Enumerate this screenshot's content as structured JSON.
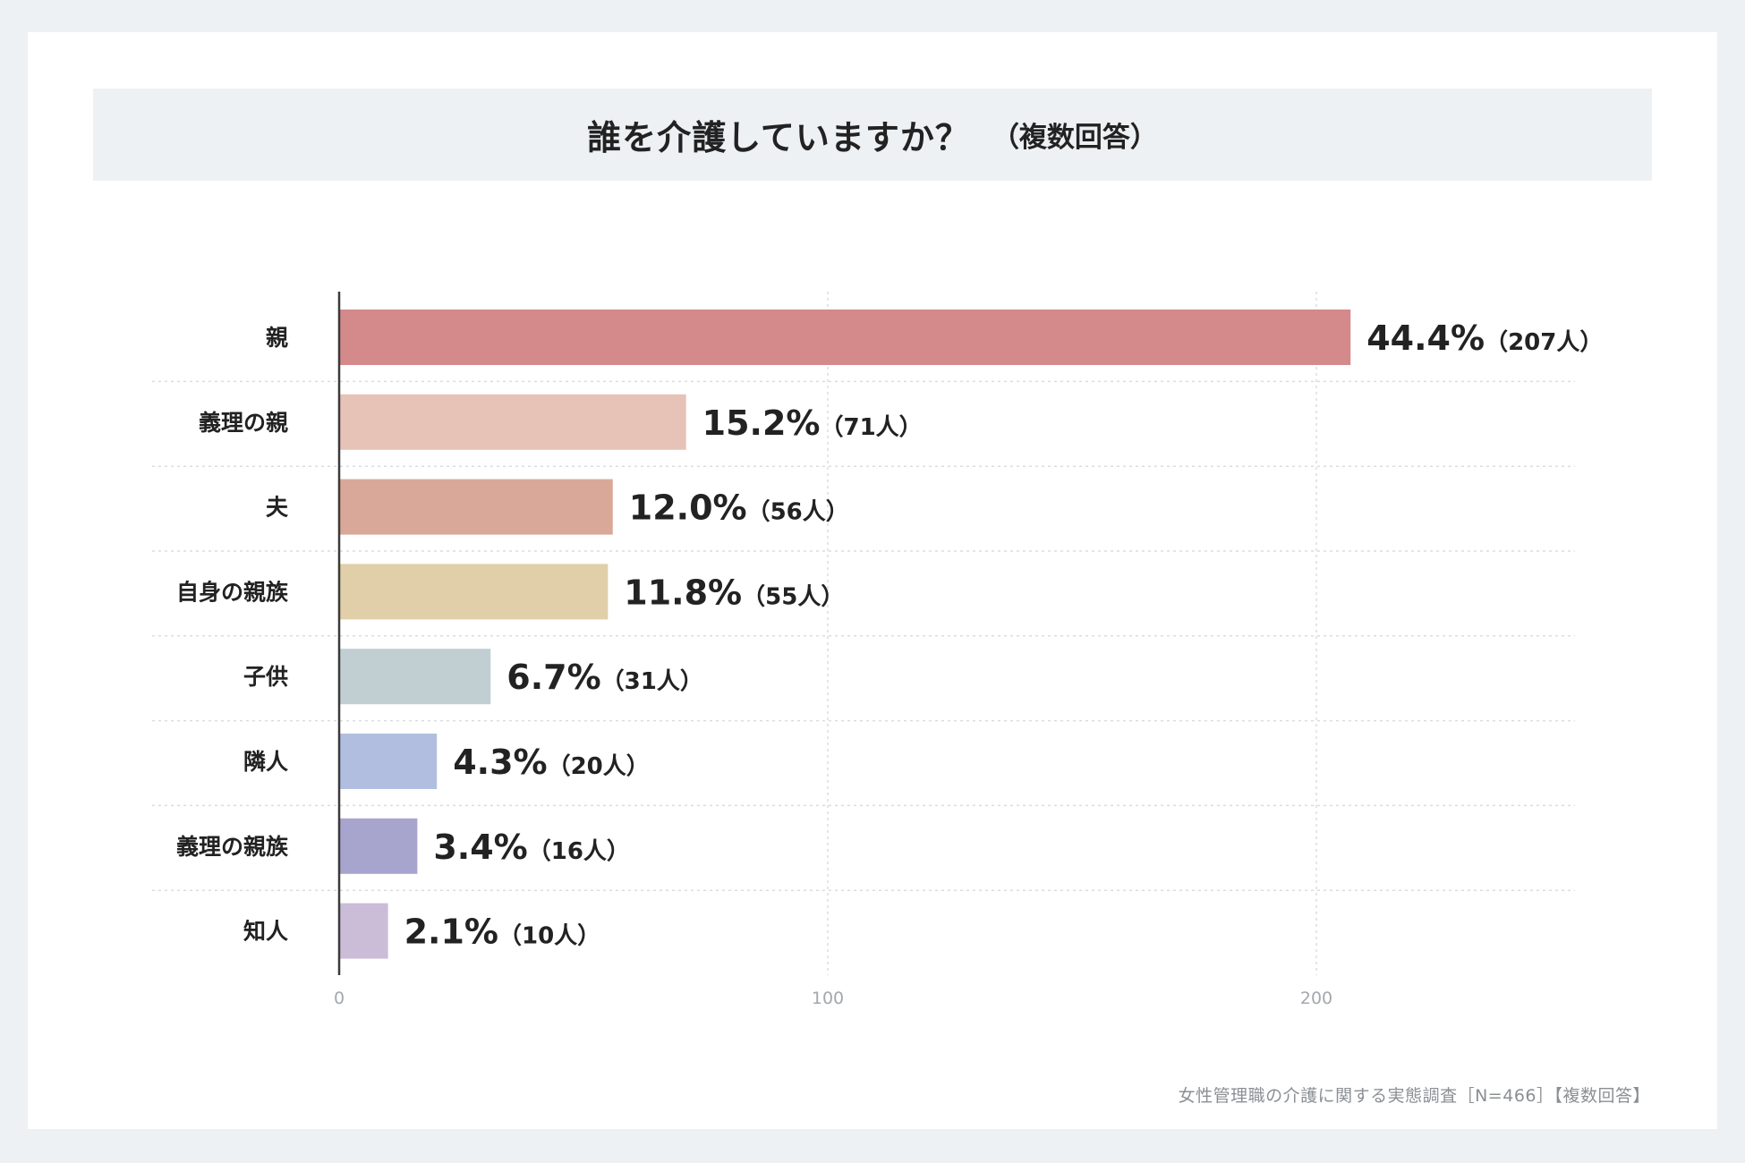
{
  "chart_data": {
    "type": "bar",
    "orientation": "horizontal",
    "title": "誰を介護していますか？",
    "subtitle": "（複数回答）",
    "categories": [
      "親",
      "義理の親",
      "夫",
      "自身の親族",
      "子供",
      "隣人",
      "義理の親族",
      "知人"
    ],
    "values": [
      207,
      71,
      56,
      55,
      31,
      20,
      16,
      10
    ],
    "percent_labels": [
      "44.4%",
      "15.2%",
      "12.0%",
      "11.8%",
      "6.7%",
      "4.3%",
      "3.4%",
      "2.1%"
    ],
    "count_labels": [
      "（207人）",
      "（71人）",
      "（56人）",
      "（55人）",
      "（31人）",
      "（20人）",
      "（16人）",
      "（10人）"
    ],
    "colors": [
      "#d4898b",
      "#e6c2b7",
      "#daa898",
      "#e0cfa8",
      "#c1ced2",
      "#b1bedf",
      "#a7a4cd",
      "#cbbcd8"
    ],
    "xlim": [
      0,
      253
    ],
    "xticks": [
      0,
      100,
      200
    ],
    "xtick_labels": [
      "0",
      "100",
      "200"
    ],
    "grid": true,
    "legend": "none"
  },
  "footnote": "女性管理職の介護に関する実態調査［N=466］【複数回答】"
}
